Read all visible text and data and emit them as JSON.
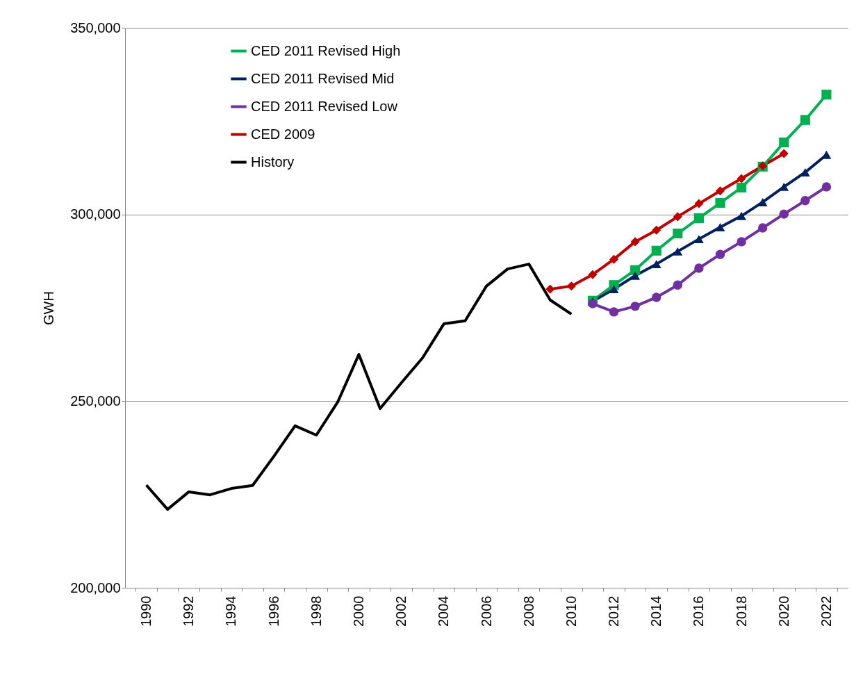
{
  "chart_data": {
    "type": "line",
    "ylabel": "GWH",
    "categories": [
      "1990",
      null,
      "1992",
      null,
      "1994",
      null,
      "1996",
      null,
      "1998",
      null,
      "2000",
      null,
      "2002",
      null,
      "2004",
      null,
      "2006",
      null,
      "2008",
      null,
      "2010",
      null,
      "2012",
      null,
      "2014",
      null,
      "2016",
      null,
      "2018",
      null,
      "2020",
      null,
      "2022"
    ],
    "ylim": [
      200000,
      350000
    ],
    "yticks": [
      {
        "value": 200000,
        "label": "200,000"
      },
      {
        "value": 250000,
        "label": "250,000"
      },
      {
        "value": 300000,
        "label": "300,000"
      },
      {
        "value": 350000,
        "label": "350,000"
      }
    ],
    "grid": "y",
    "legend": "top left",
    "series": [
      {
        "name": "CED 2011 Revised High",
        "color": "#00b050",
        "marker": "square",
        "values": [
          null,
          null,
          null,
          null,
          null,
          null,
          null,
          null,
          null,
          null,
          null,
          null,
          null,
          null,
          null,
          null,
          null,
          null,
          null,
          null,
          null,
          276900,
          281100,
          285100,
          290300,
          294900,
          299000,
          303100,
          307200,
          312800,
          319300,
          325300,
          332100
        ]
      },
      {
        "name": "CED 2011 Revised Mid",
        "color": "#002060",
        "marker": "triangle",
        "values": [
          null,
          null,
          null,
          null,
          null,
          null,
          null,
          null,
          null,
          null,
          null,
          null,
          null,
          null,
          null,
          null,
          null,
          null,
          null,
          null,
          null,
          276700,
          280000,
          283600,
          286700,
          290100,
          293400,
          296600,
          299600,
          303300,
          307400,
          311300,
          316000
        ]
      },
      {
        "name": "CED 2011 Revised Low",
        "color": "#7030a0",
        "marker": "circle",
        "values": [
          null,
          null,
          null,
          null,
          null,
          null,
          null,
          null,
          null,
          null,
          null,
          null,
          null,
          null,
          null,
          null,
          null,
          null,
          null,
          null,
          null,
          276100,
          273900,
          275400,
          277800,
          281100,
          285600,
          289300,
          292700,
          296400,
          300100,
          303700,
          307400
        ]
      },
      {
        "name": "CED 2009",
        "color": "#c00000",
        "marker": "diamond",
        "values": [
          null,
          null,
          null,
          null,
          null,
          null,
          null,
          null,
          null,
          null,
          null,
          null,
          null,
          null,
          null,
          null,
          null,
          null,
          null,
          280000,
          280800,
          283900,
          288000,
          292700,
          295800,
          299400,
          302900,
          306300,
          309600,
          313000,
          316300,
          null,
          null
        ]
      },
      {
        "name": "History",
        "color": "#000000",
        "marker": "none",
        "values": [
          227500,
          221000,
          225700,
          224900,
          226600,
          227400,
          235200,
          243400,
          240900,
          249700,
          262500,
          248000,
          254900,
          261600,
          270700,
          271500,
          280800,
          285400,
          286700,
          277100,
          273300,
          null,
          null,
          null,
          null,
          null,
          null,
          null,
          null,
          null,
          null,
          null,
          null
        ]
      }
    ]
  }
}
